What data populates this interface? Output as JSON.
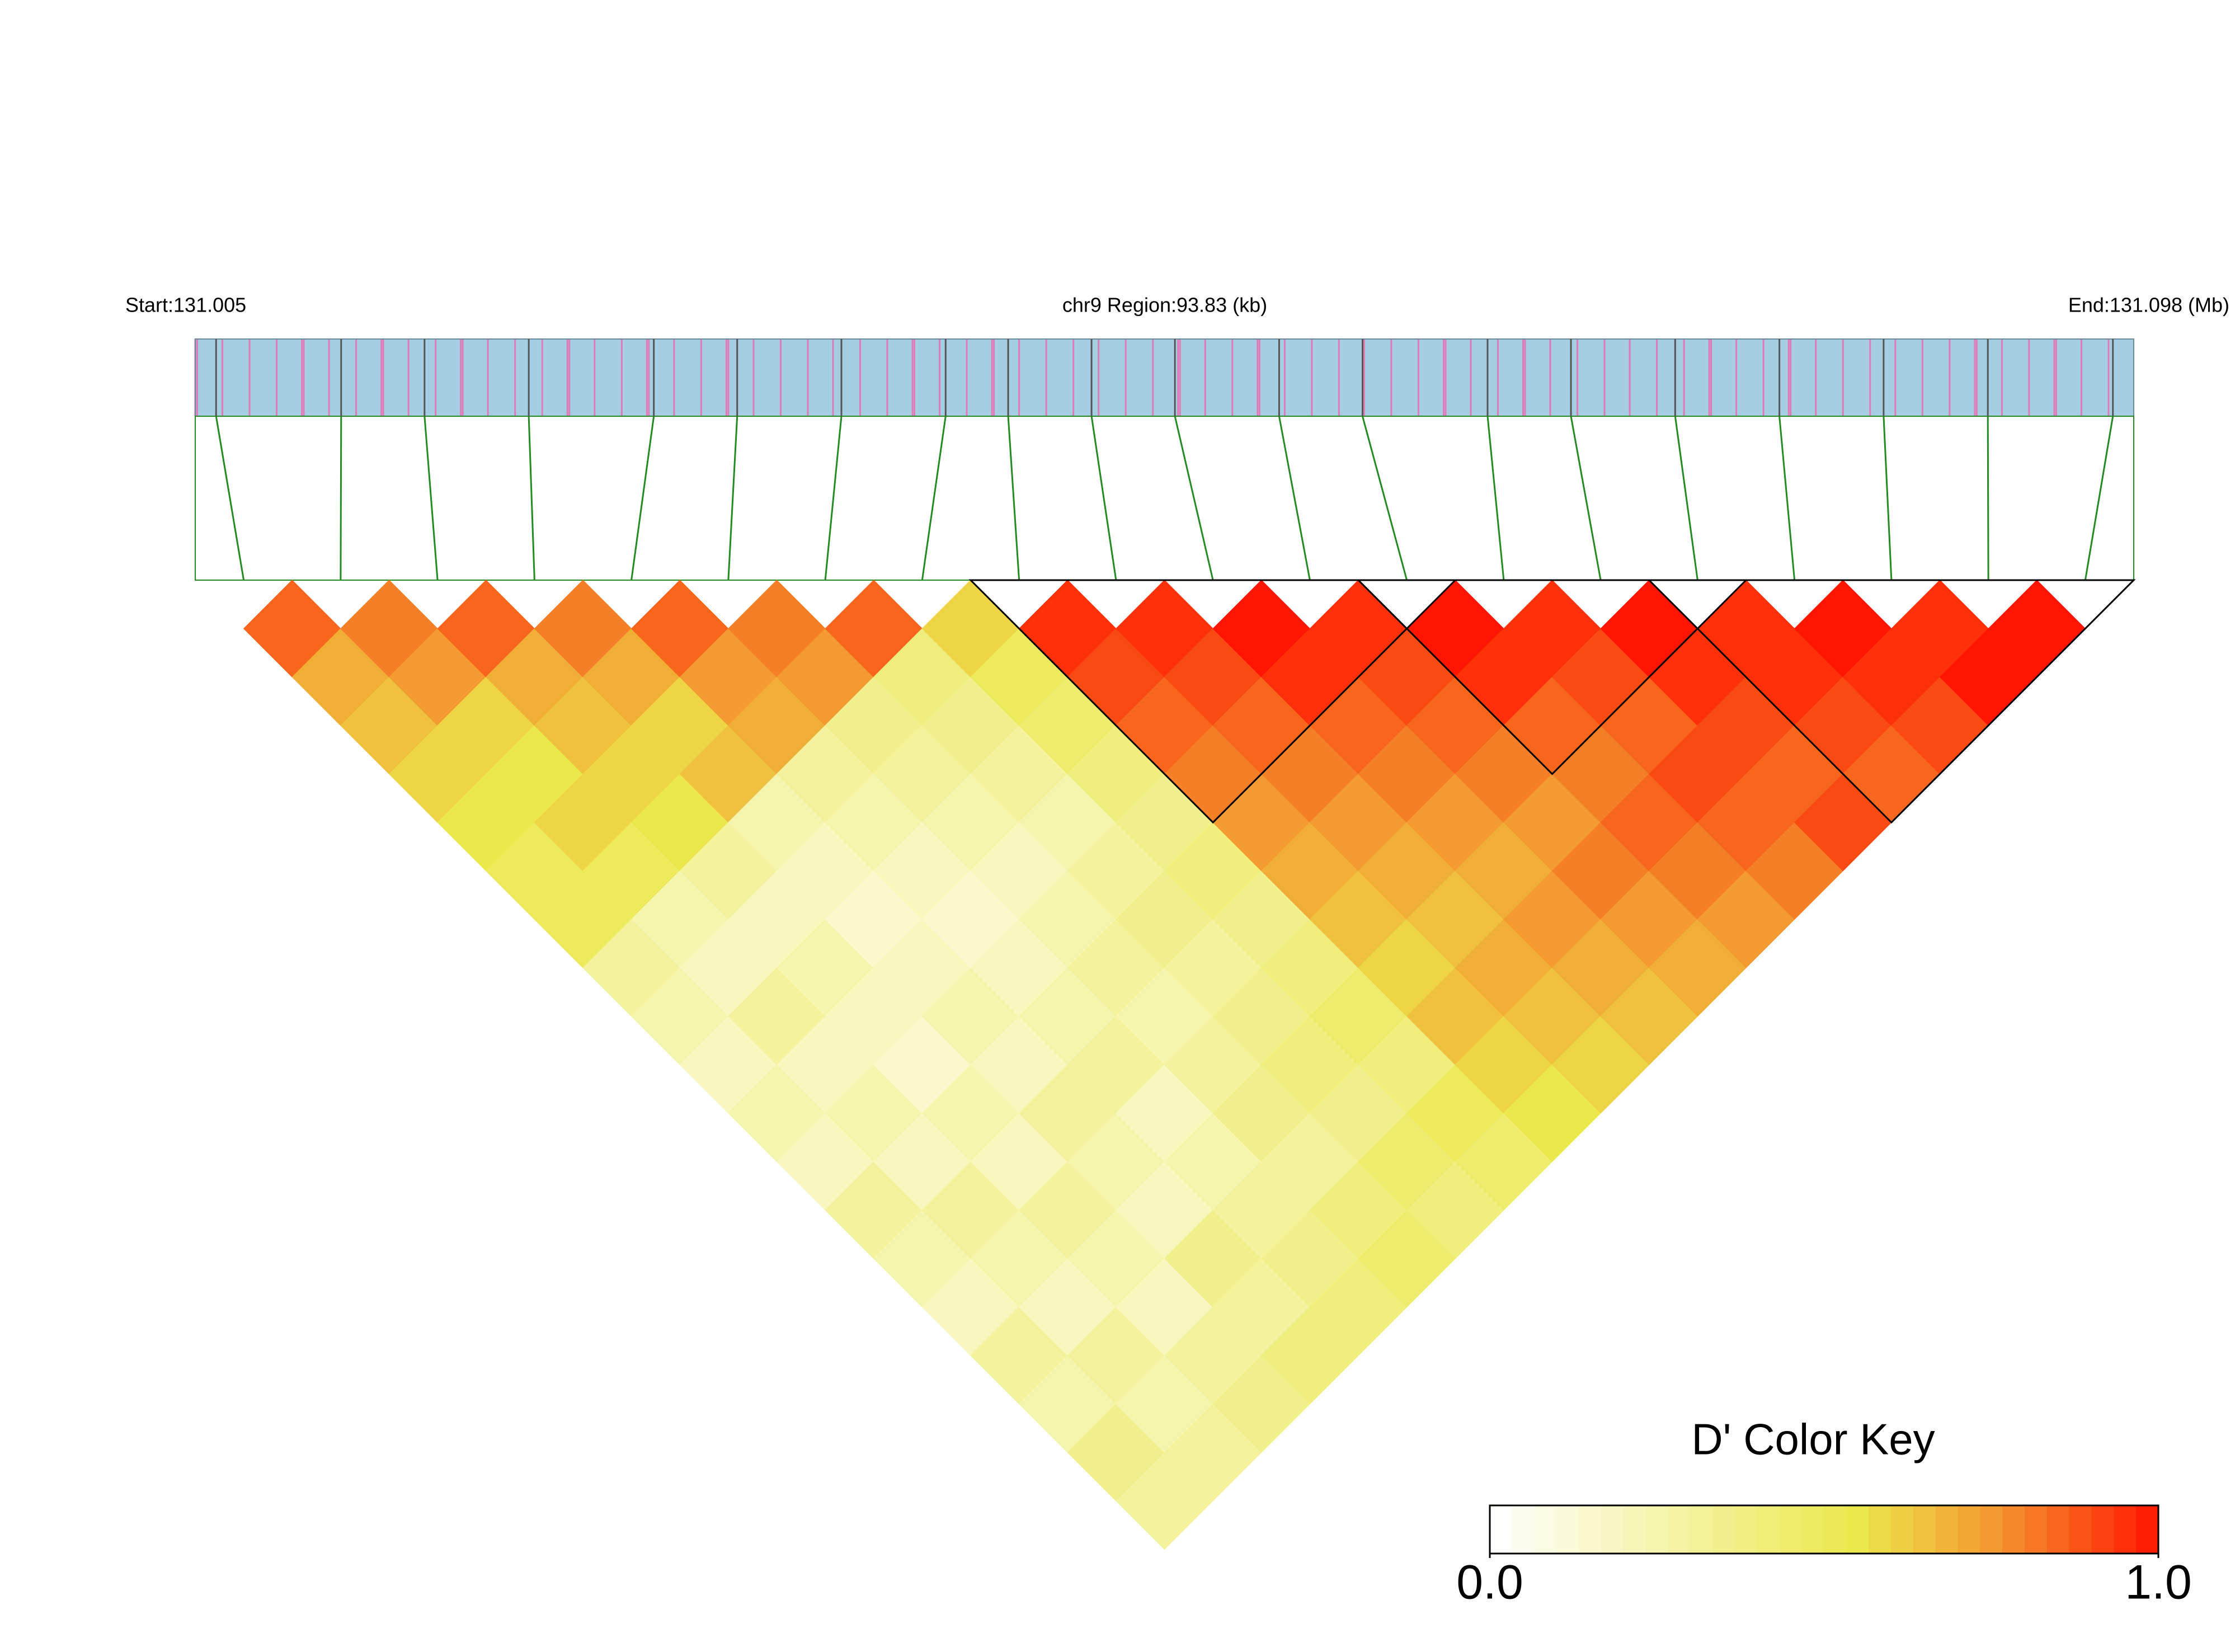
{
  "chart_data": {
    "type": "ld_heatmap",
    "start_label": "Start:131.005",
    "region_label": "chr9 Region:93.83 (kb)",
    "end_label": "End:131.098 (Mb)",
    "xlim": [
      131.005,
      131.098
    ],
    "snp_positions": [
      131.006,
      131.012,
      131.016,
      131.021,
      131.027,
      131.031,
      131.036,
      131.041,
      131.044,
      131.048,
      131.052,
      131.057,
      131.061,
      131.067,
      131.071,
      131.076,
      131.081,
      131.086,
      131.091,
      131.097
    ],
    "values": [
      [
        0.85,
        0.7,
        0.65,
        0.6,
        0.55,
        0.5,
        0.5,
        0.3,
        0.25,
        0.2,
        0.25,
        0.2,
        0.3,
        0.25,
        0.2,
        0.3,
        0.25,
        0.35,
        0.3
      ],
      [
        0.8,
        0.75,
        0.6,
        0.55,
        0.6,
        0.5,
        0.25,
        0.2,
        0.3,
        0.2,
        0.25,
        0.2,
        0.3,
        0.25,
        0.2,
        0.3,
        0.25,
        0.3
      ],
      [
        0.85,
        0.7,
        0.65,
        0.6,
        0.55,
        0.3,
        0.2,
        0.25,
        0.2,
        0.15,
        0.25,
        0.2,
        0.3,
        0.25,
        0.2,
        0.3,
        0.35
      ],
      [
        0.8,
        0.7,
        0.6,
        0.65,
        0.25,
        0.2,
        0.15,
        0.2,
        0.25,
        0.2,
        0.3,
        0.25,
        0.2,
        0.35,
        0.3,
        0.4
      ],
      [
        0.85,
        0.75,
        0.7,
        0.3,
        0.25,
        0.2,
        0.15,
        0.2,
        0.25,
        0.3,
        0.2,
        0.25,
        0.3,
        0.35,
        0.4
      ],
      [
        0.8,
        0.75,
        0.35,
        0.3,
        0.25,
        0.2,
        0.25,
        0.3,
        0.25,
        0.3,
        0.35,
        0.3,
        0.4,
        0.45
      ],
      [
        0.85,
        0.4,
        0.35,
        0.3,
        0.25,
        0.3,
        0.35,
        0.3,
        0.35,
        0.4,
        0.35,
        0.45,
        0.4
      ],
      [
        0.6,
        0.5,
        0.45,
        0.4,
        0.35,
        0.4,
        0.35,
        0.4,
        0.45,
        0.4,
        0.5,
        0.45
      ],
      [
        0.95,
        0.9,
        0.85,
        0.8,
        0.75,
        0.7,
        0.65,
        0.6,
        0.65,
        0.6,
        0.55
      ],
      [
        0.95,
        0.9,
        0.85,
        0.8,
        0.75,
        0.7,
        0.65,
        0.7,
        0.65,
        0.6
      ],
      [
        1,
        0.95,
        0.85,
        0.8,
        0.75,
        0.7,
        0.75,
        0.7,
        0.65
      ],
      [
        0.95,
        0.9,
        0.85,
        0.8,
        0.75,
        0.8,
        0.75,
        0.7
      ],
      [
        1,
        0.95,
        0.85,
        0.8,
        0.85,
        0.8,
        0.75
      ],
      [
        0.95,
        0.9,
        0.85,
        0.9,
        0.85,
        0.8
      ],
      [
        1,
        0.95,
        0.9,
        0.85,
        0.9
      ],
      [
        0.95,
        0.95,
        0.9,
        0.85
      ],
      [
        1,
        0.95,
        0.9
      ],
      [
        0.95,
        1
      ],
      [
        1
      ]
    ],
    "blocks": [
      [
        8,
        12
      ],
      [
        12,
        15
      ],
      [
        15,
        19
      ]
    ],
    "colorscale": [
      [
        0,
        "#ffffff"
      ],
      [
        0.55,
        "#ebe84c"
      ],
      [
        0.75,
        "#f39a30"
      ],
      [
        1,
        "#ff1500"
      ]
    ],
    "key_title": "D' Color Key",
    "clim": [
      0,
      1
    ],
    "cticks": [
      {
        "value": 0,
        "label": "0.0"
      },
      {
        "value": 1,
        "label": "1.0"
      }
    ],
    "bar_color": "#a6cee3",
    "line_color": "#228b22"
  }
}
